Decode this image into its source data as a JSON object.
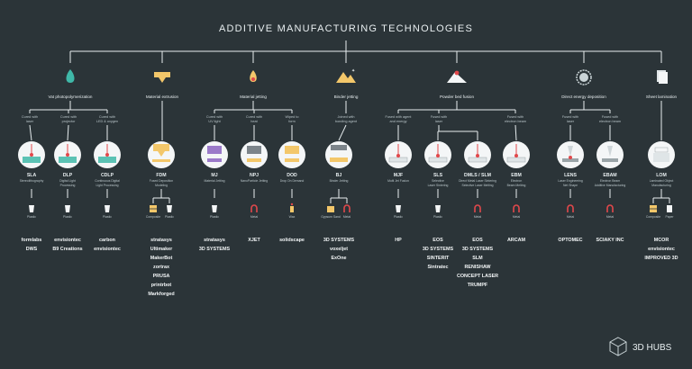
{
  "title": "ADDITIVE MANUFACTURING TECHNOLOGIES",
  "brand": {
    "name": "3D HUBS"
  },
  "colors": {
    "bg": "#2b3438",
    "line": "#e8eef0",
    "accent_red": "#e2484b"
  },
  "categories": [
    {
      "label": "Vat photopolymerization",
      "icon": "water-drop-icon"
    },
    {
      "label": "Material extrusion",
      "icon": "extruder-icon"
    },
    {
      "label": "Material jetting",
      "icon": "jet-drop-icon"
    },
    {
      "label": "Binder jetting",
      "icon": "powder-bed-icon"
    },
    {
      "label": "Powder bed fusion",
      "icon": "laser-powder-icon"
    },
    {
      "label": "Direct energy deposition",
      "icon": "saw-blade-icon"
    },
    {
      "label": "Sheet lamination",
      "icon": "paper-sheets-icon"
    }
  ],
  "sublabels": [
    {
      "line1": "Cured with",
      "line2": "laser"
    },
    {
      "line1": "Cured with",
      "line2": "projector"
    },
    {
      "line1": "Cured with",
      "line2": "LED & oxygen"
    },
    {
      "line1": "Cured with",
      "line2": "UV light"
    },
    {
      "line1": "Cured with",
      "line2": "heat"
    },
    {
      "line1": "Wiped to",
      "line2": "form"
    },
    {
      "line1": "Joined with",
      "line2": "bonding agent"
    },
    {
      "line1": "Fused with agent",
      "line2": "and energy"
    },
    {
      "line1": "Fused with",
      "line2": "laser"
    },
    {
      "line1": "Fused with",
      "line2": "electron beam"
    },
    {
      "line1": "Fused with",
      "line2": "laser"
    },
    {
      "line1": "Fused with",
      "line2": "electron beam"
    }
  ],
  "technologies": [
    {
      "abbr": "SLA",
      "name1": "Stereolithography",
      "name2": "",
      "materials": [
        "Plastic"
      ],
      "makers": [
        "formlabs",
        "DWS"
      ]
    },
    {
      "abbr": "DLP",
      "name1": "Digital Light",
      "name2": "Processing",
      "materials": [
        "Plastic"
      ],
      "makers": [
        "envisiontec",
        "B9 Creations"
      ]
    },
    {
      "abbr": "CDLP",
      "name1": "Continuous Digital",
      "name2": "Light Processing",
      "materials": [
        "Plastic"
      ],
      "makers": [
        "carbon",
        "envisiontec"
      ]
    },
    {
      "abbr": "FDM",
      "name1": "Fused Deposition",
      "name2": "Modeling",
      "materials": [
        "Composite",
        "Plastic"
      ],
      "makers": [
        "stratasys",
        "Ultimaker",
        "MakerBot",
        "zortrax",
        "PRUSA",
        "printrbot",
        "Markforged"
      ]
    },
    {
      "abbr": "MJ",
      "name1": "Material Jetting",
      "name2": "",
      "materials": [
        "Plastic"
      ],
      "makers": [
        "stratasys",
        "3D SYSTEMS"
      ]
    },
    {
      "abbr": "NPJ",
      "name1": "NanoParticle Jetting",
      "name2": "",
      "materials": [
        "Metal"
      ],
      "makers": [
        "XJET"
      ]
    },
    {
      "abbr": "DOD",
      "name1": "Drop On Demand",
      "name2": "",
      "materials": [
        "Wax"
      ],
      "makers": [
        "solidscape"
      ]
    },
    {
      "abbr": "BJ",
      "name1": "Binder Jetting",
      "name2": "",
      "materials": [
        "Gypsum Sand",
        "Metal"
      ],
      "makers": [
        "3D SYSTEMS",
        "voxeljet",
        "ExOne"
      ]
    },
    {
      "abbr": "MJF",
      "name1": "Multi Jet Fusion",
      "name2": "",
      "materials": [
        "Plastic"
      ],
      "makers": [
        "HP"
      ]
    },
    {
      "abbr": "SLS",
      "name1": "Selective",
      "name2": "Laser Sintering",
      "materials": [
        "Plastic"
      ],
      "makers": [
        "EOS",
        "3D SYSTEMS",
        "SINTERIT",
        "Sintratec"
      ]
    },
    {
      "abbr": "DMLS / SLM",
      "name1": "Direct Metal Laser Sintering",
      "name2": "Selective Laser Melting",
      "materials": [
        "Metal"
      ],
      "makers": [
        "EOS",
        "3D SYSTEMS",
        "SLM",
        "RENISHAW",
        "CONCEPT LASER",
        "TRUMPF"
      ]
    },
    {
      "abbr": "EBM",
      "name1": "Electron",
      "name2": "Beam Melting",
      "materials": [
        "Metal"
      ],
      "makers": [
        "ARCAM"
      ]
    },
    {
      "abbr": "LENS",
      "name1": "Laser Engineering",
      "name2": "Net Shape",
      "materials": [
        "Metal"
      ],
      "makers": [
        "OPTOMEC"
      ]
    },
    {
      "abbr": "EBAM",
      "name1": "Electron Beam",
      "name2": "Additive Manufacturing",
      "materials": [
        "Metal"
      ],
      "makers": [
        "SCIAKY INC"
      ]
    },
    {
      "abbr": "LOM",
      "name1": "Laminated Object",
      "name2": "Manufacturing",
      "materials": [
        "Composite",
        "Paper"
      ],
      "makers": [
        "MCOR",
        "envisiontec",
        "IMPROVED 3D"
      ]
    }
  ]
}
